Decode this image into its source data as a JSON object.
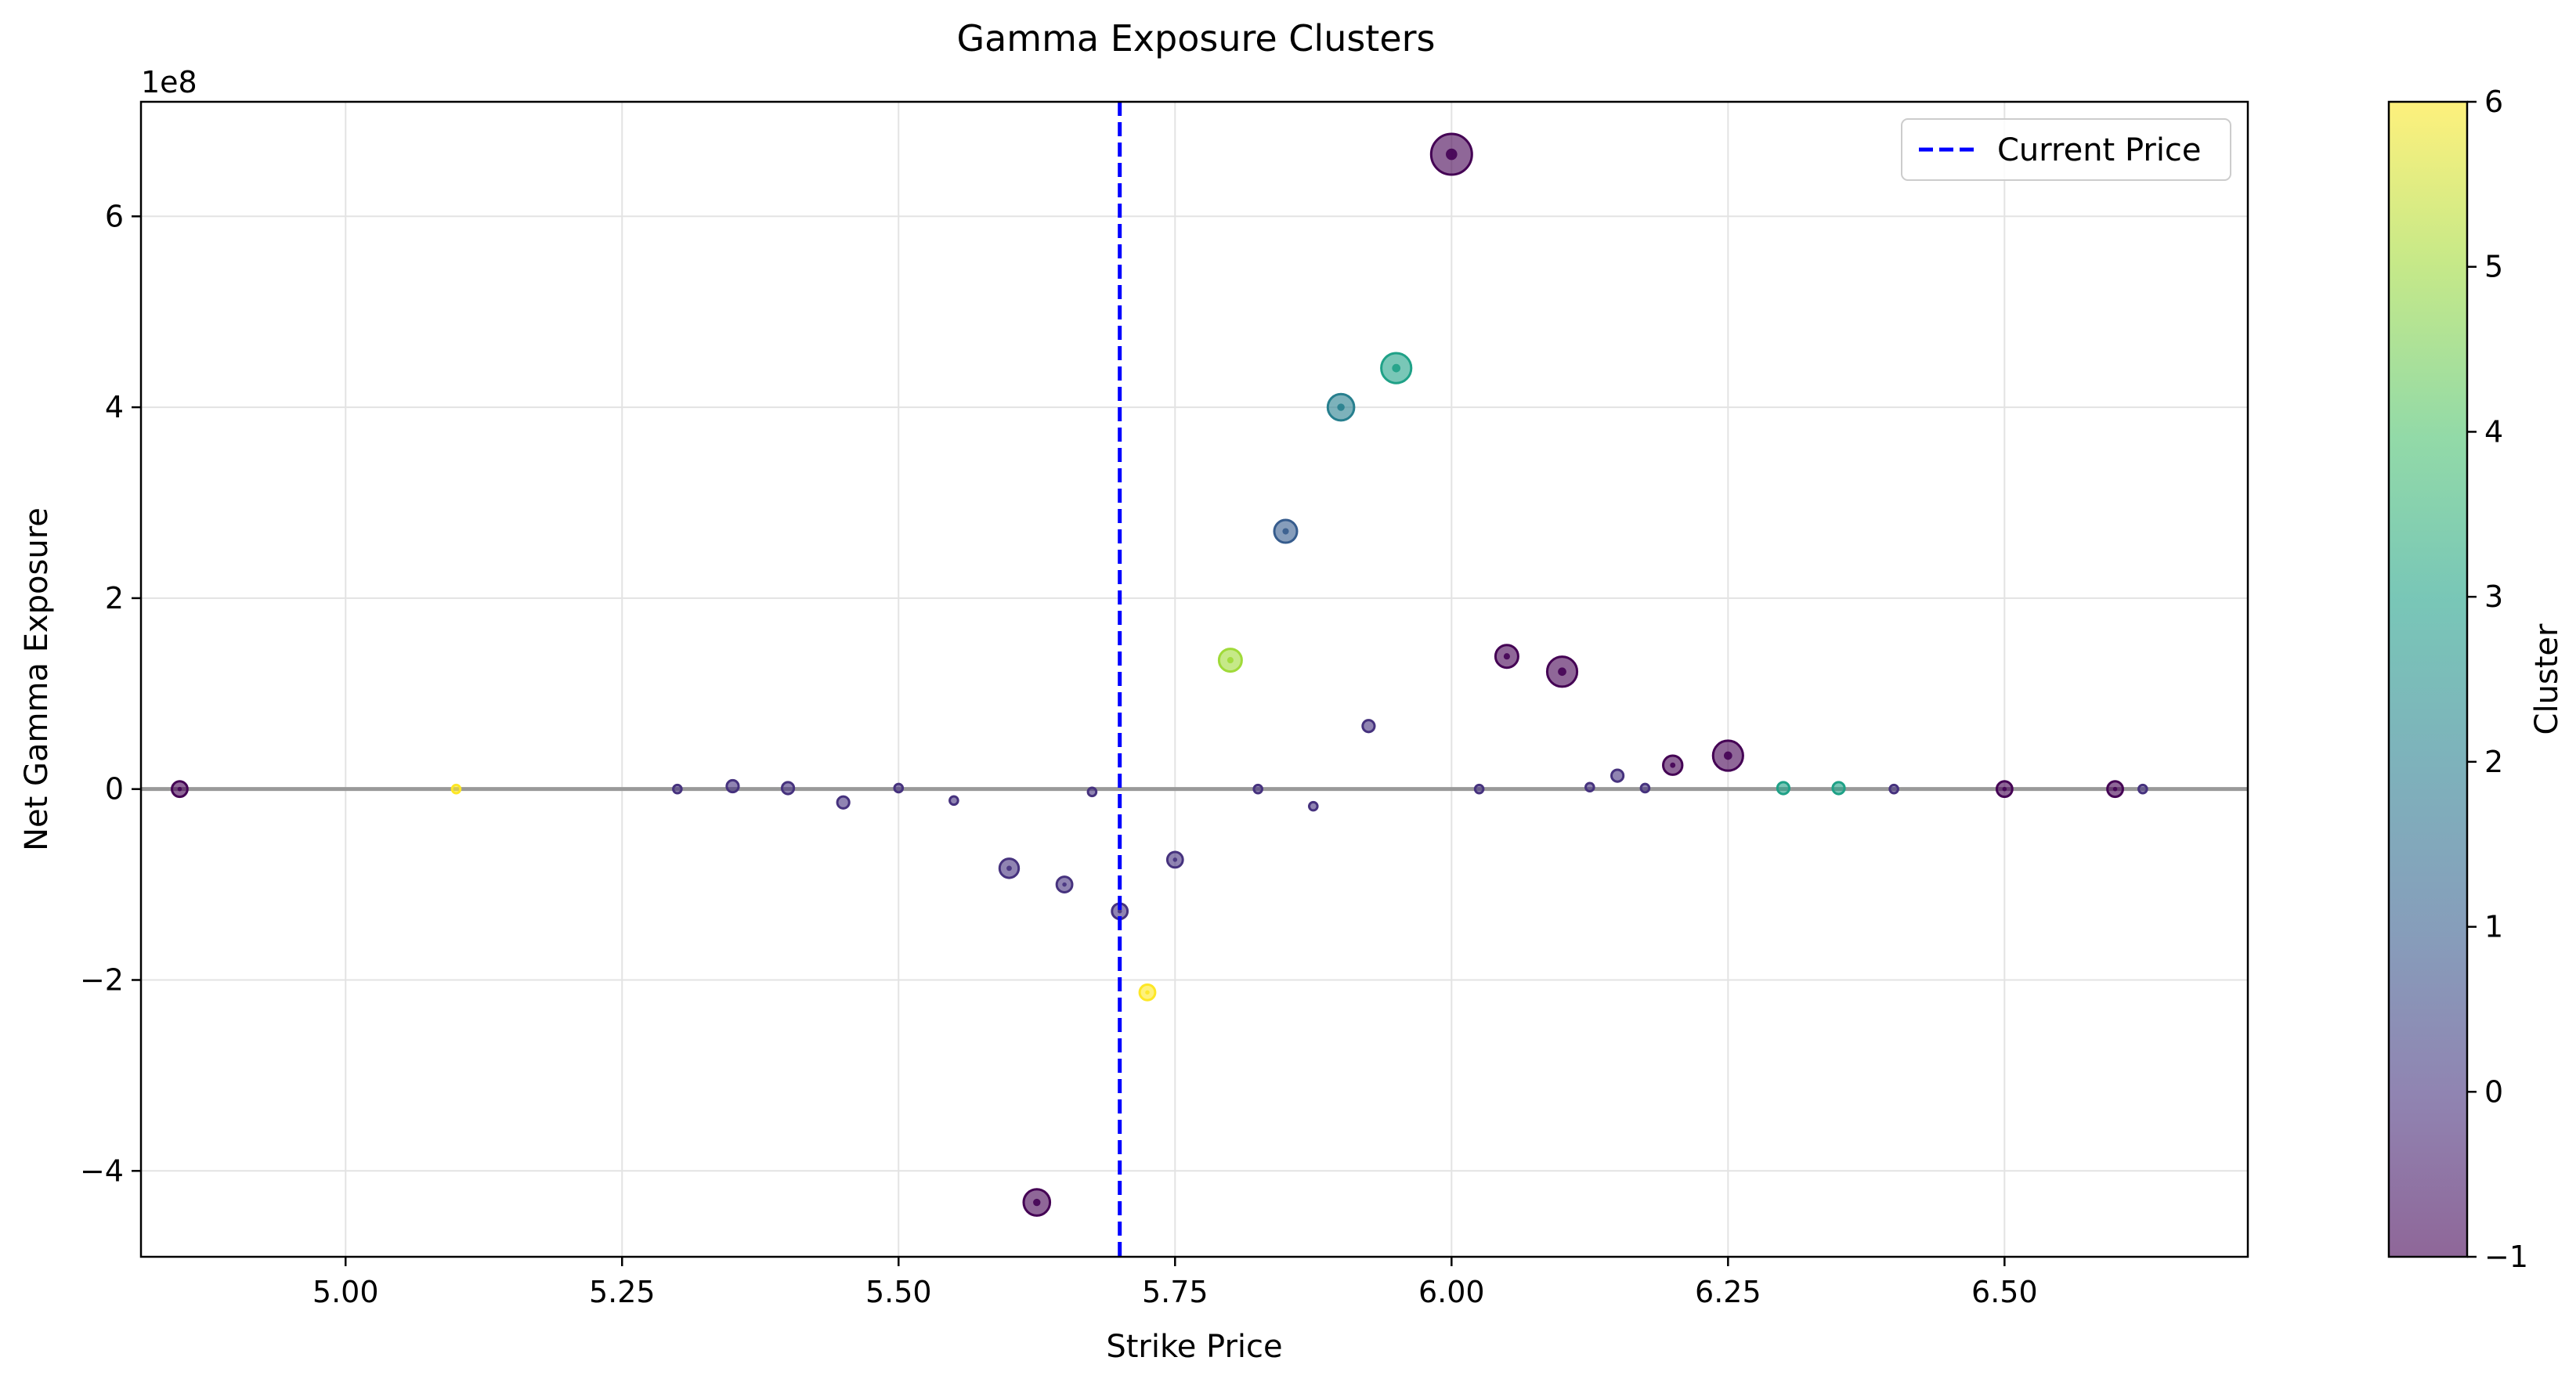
{
  "chart_data": {
    "type": "scatter",
    "title": "Gamma Exposure Clusters",
    "xlabel": "Strike Price",
    "ylabel": "Net Gamma Exposure",
    "y_offset_label": "1e8",
    "xlim": [
      4.815,
      6.72
    ],
    "ylim": [
      -4.9,
      7.2
    ],
    "x_ticks": [
      5.0,
      5.25,
      5.5,
      5.75,
      6.0,
      6.25,
      6.5
    ],
    "x_tick_labels": [
      "5.00",
      "5.25",
      "5.50",
      "5.75",
      "6.00",
      "6.25",
      "6.50"
    ],
    "y_ticks": [
      -4,
      -2,
      0,
      2,
      4,
      6
    ],
    "y_tick_labels": [
      "−4",
      "−2",
      "0",
      "2",
      "4",
      "6"
    ],
    "y_units": "1e8",
    "grid": true,
    "reference_lines": {
      "vertical": {
        "x": 5.7,
        "label": "Current Price",
        "color": "#0000ff",
        "style": "dashed"
      },
      "horizontal": {
        "y": 0,
        "color": "#999999"
      }
    },
    "legend": {
      "placement": "top-right",
      "entries": [
        "Current Price"
      ]
    },
    "colorbar": {
      "label": "Cluster",
      "range": [
        -1,
        6
      ],
      "ticks": [
        -1,
        0,
        1,
        2,
        3,
        4,
        5,
        6
      ],
      "tick_labels": [
        "−1",
        "0",
        "1",
        "2",
        "3",
        "4",
        "5",
        "6"
      ],
      "colormap": "viridis"
    },
    "points": [
      {
        "x": 4.85,
        "y": 0.0,
        "cluster": -1,
        "size": 3
      },
      {
        "x": 5.1,
        "y": 0.0,
        "cluster": 6,
        "size": 1
      },
      {
        "x": 5.3,
        "y": 0.0,
        "cluster": 0,
        "size": 1
      },
      {
        "x": 5.35,
        "y": 0.03,
        "cluster": 0,
        "size": 2
      },
      {
        "x": 5.4,
        "y": 0.01,
        "cluster": 0,
        "size": 2
      },
      {
        "x": 5.45,
        "y": -0.14,
        "cluster": 0,
        "size": 2
      },
      {
        "x": 5.5,
        "y": 0.01,
        "cluster": 0,
        "size": 1
      },
      {
        "x": 5.55,
        "y": -0.12,
        "cluster": 0,
        "size": 1
      },
      {
        "x": 5.6,
        "y": -0.83,
        "cluster": 0,
        "size": 4
      },
      {
        "x": 5.625,
        "y": -4.33,
        "cluster": -1,
        "size": 6
      },
      {
        "x": 5.65,
        "y": -1.0,
        "cluster": 0,
        "size": 3
      },
      {
        "x": 5.675,
        "y": -0.03,
        "cluster": 0,
        "size": 1
      },
      {
        "x": 5.7,
        "y": -1.28,
        "cluster": 0,
        "size": 3
      },
      {
        "x": 5.725,
        "y": -2.13,
        "cluster": 6,
        "size": 3
      },
      {
        "x": 5.75,
        "y": -0.74,
        "cluster": 0,
        "size": 3
      },
      {
        "x": 5.8,
        "y": 1.35,
        "cluster": 5,
        "size": 5
      },
      {
        "x": 5.825,
        "y": 0.0,
        "cluster": 0,
        "size": 1
      },
      {
        "x": 5.85,
        "y": 2.7,
        "cluster": 1,
        "size": 5
      },
      {
        "x": 5.875,
        "y": -0.18,
        "cluster": 0,
        "size": 1
      },
      {
        "x": 5.9,
        "y": 4.0,
        "cluster": 2,
        "size": 6
      },
      {
        "x": 5.925,
        "y": 0.66,
        "cluster": 0,
        "size": 2
      },
      {
        "x": 5.95,
        "y": 4.41,
        "cluster": 3,
        "size": 7
      },
      {
        "x": 6.0,
        "y": 6.65,
        "cluster": -1,
        "size": 10
      },
      {
        "x": 6.025,
        "y": 0.0,
        "cluster": 0,
        "size": 1
      },
      {
        "x": 6.05,
        "y": 1.39,
        "cluster": -1,
        "size": 5
      },
      {
        "x": 6.1,
        "y": 1.23,
        "cluster": -1,
        "size": 7
      },
      {
        "x": 6.125,
        "y": 0.02,
        "cluster": 0,
        "size": 1
      },
      {
        "x": 6.15,
        "y": 0.14,
        "cluster": 0,
        "size": 2
      },
      {
        "x": 6.175,
        "y": 0.01,
        "cluster": 0,
        "size": 1
      },
      {
        "x": 6.2,
        "y": 0.25,
        "cluster": -1,
        "size": 4
      },
      {
        "x": 6.25,
        "y": 0.35,
        "cluster": -1,
        "size": 7
      },
      {
        "x": 6.3,
        "y": 0.01,
        "cluster": 3,
        "size": 2
      },
      {
        "x": 6.35,
        "y": 0.01,
        "cluster": 3,
        "size": 2
      },
      {
        "x": 6.4,
        "y": 0.0,
        "cluster": 0,
        "size": 1
      },
      {
        "x": 6.5,
        "y": 0.0,
        "cluster": -1,
        "size": 3
      },
      {
        "x": 6.6,
        "y": 0.0,
        "cluster": -1,
        "size": 3
      },
      {
        "x": 6.625,
        "y": 0.0,
        "cluster": 0,
        "size": 1
      }
    ]
  }
}
